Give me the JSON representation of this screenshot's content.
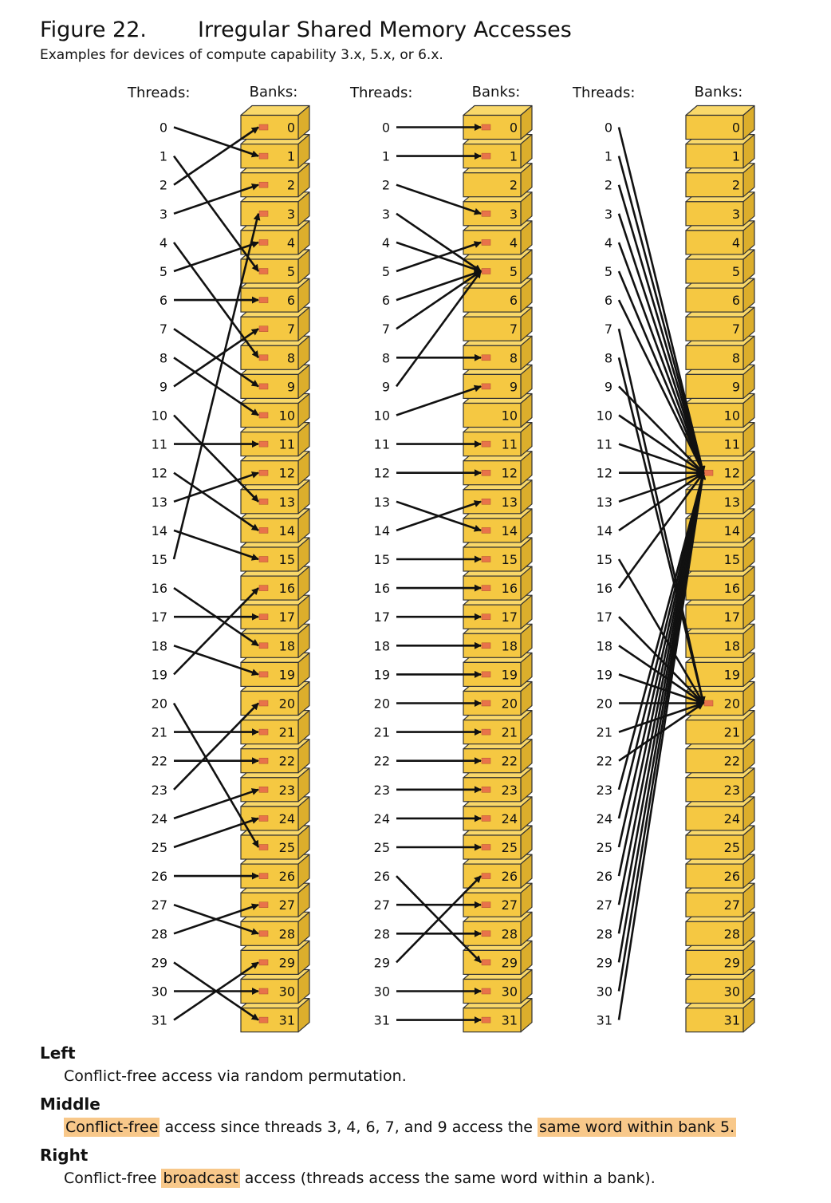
{
  "figure": {
    "number": "Figure 22.",
    "title": "Irregular Shared Memory Accesses",
    "subtitle": "Examples for devices of compute capability 3.x, 5.x, or 6.x."
  },
  "labels": {
    "threads": "Threads:",
    "banks": "Banks:"
  },
  "colors": {
    "bank_fill": "#f5c842",
    "bank_edge": "#333333",
    "word_marker": "#e8734a",
    "highlight": "#f8c88a",
    "arrow": "#111111"
  },
  "panels": [
    {
      "name": "left",
      "mapping": [
        1,
        5,
        0,
        2,
        8,
        4,
        6,
        9,
        10,
        7,
        13,
        11,
        14,
        12,
        15,
        3,
        18,
        17,
        19,
        16,
        25,
        21,
        22,
        20,
        23,
        24,
        26,
        28,
        27,
        31,
        30,
        29
      ],
      "marked_banks": "all"
    },
    {
      "name": "middle",
      "mapping": [
        0,
        1,
        3,
        5,
        5,
        4,
        5,
        5,
        8,
        5,
        9,
        11,
        12,
        14,
        13,
        15,
        16,
        17,
        18,
        19,
        20,
        21,
        22,
        23,
        24,
        25,
        29,
        27,
        28,
        26,
        30,
        31
      ],
      "marked_banks": [
        0,
        1,
        3,
        4,
        5,
        8,
        9,
        11,
        12,
        13,
        14,
        15,
        16,
        17,
        18,
        19,
        20,
        21,
        22,
        23,
        24,
        25,
        26,
        27,
        28,
        29,
        30,
        31
      ]
    },
    {
      "name": "right",
      "mapping": [
        12,
        12,
        12,
        12,
        12,
        12,
        12,
        20,
        20,
        12,
        12,
        12,
        12,
        12,
        12,
        20,
        12,
        20,
        20,
        20,
        20,
        20,
        20,
        12,
        12,
        12,
        12,
        12,
        12,
        12,
        12,
        12
      ],
      "marked_banks": [
        12,
        20
      ]
    }
  ],
  "notes": [
    {
      "heading": "Left",
      "parts": [
        {
          "text": "Conflict-free access via random permutation.",
          "hl": false
        }
      ]
    },
    {
      "heading": "Middle",
      "parts": [
        {
          "text": "Conflict-free",
          "hl": true
        },
        {
          "text": " access since threads 3, 4, 6, 7, and 9 access the ",
          "hl": false
        },
        {
          "text": "same word within bank 5.",
          "hl": true
        }
      ]
    },
    {
      "heading": "Right",
      "parts": [
        {
          "text": "Conflict-free ",
          "hl": false
        },
        {
          "text": "broadcast",
          "hl": true
        },
        {
          "text": " access (threads access the same word within a bank).",
          "hl": false
        }
      ]
    }
  ]
}
